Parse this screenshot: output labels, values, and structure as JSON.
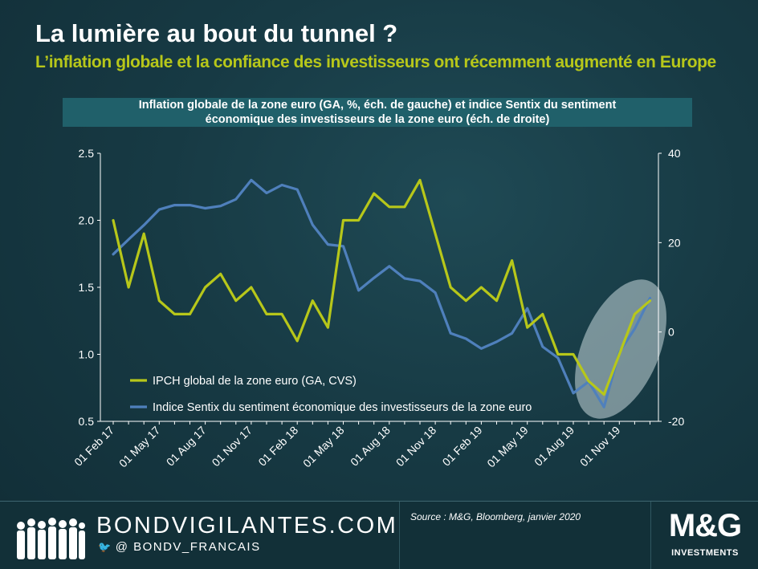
{
  "header": {
    "title": "La lumière au bout du tunnel ?",
    "subtitle": "L’inflation globale et la confiance des investisseurs ont récemment augmenté en Europe"
  },
  "chart_data": {
    "type": "line",
    "title_lines": [
      "Inflation  globale  de  la  zone euro  (GA, %, éch.  de gauche)  et indice  Sentix  du  sentiment",
      "économique  des  investisseurs  de  la  zone euro  (éch.  de droite)"
    ],
    "x": [
      "Feb 17",
      "Mar 17",
      "Apr 17",
      "May 17",
      "Jun 17",
      "Jul 17",
      "Aug 17",
      "Sep 17",
      "Oct 17",
      "Nov 17",
      "Dec 17",
      "Jan 18",
      "Feb 18",
      "Mar 18",
      "Apr 18",
      "May 18",
      "Jun 18",
      "Jul 18",
      "Aug 18",
      "Sep 18",
      "Oct 18",
      "Nov 18",
      "Dec 18",
      "Jan 19",
      "Feb 19",
      "Mar 19",
      "Apr 19",
      "May 19",
      "Jun 19",
      "Jul 19",
      "Aug 19",
      "Sep 19",
      "Oct 19",
      "Nov 19",
      "Dec 19",
      "Jan 20"
    ],
    "x_tick_labels": [
      "01 Feb 17",
      "01 May 17",
      "01 Aug 17",
      "01 Nov 17",
      "01 Feb 18",
      "01 May 18",
      "01 Aug 18",
      "01 Nov 18",
      "01 Feb 19",
      "01 May 19",
      "01 Aug 19",
      "01 Nov 19"
    ],
    "y_left": {
      "ticks": [
        "0.5",
        "1.0",
        "1.5",
        "2.0",
        "2.5"
      ],
      "ylim": [
        0.5,
        2.5
      ]
    },
    "y_right": {
      "ticks": [
        "-20",
        "0",
        "20",
        "40"
      ],
      "ylim": [
        -20,
        40
      ]
    },
    "series": [
      {
        "name": "IPCH global de la zone euro (GA, CVS)",
        "axis": "left",
        "color": "#b7c71a",
        "values": [
          2.0,
          1.5,
          1.9,
          1.4,
          1.3,
          1.3,
          1.5,
          1.6,
          1.4,
          1.5,
          1.3,
          1.3,
          1.1,
          1.4,
          1.2,
          2.0,
          2.0,
          2.2,
          2.1,
          2.1,
          2.3,
          1.9,
          1.5,
          1.4,
          1.5,
          1.4,
          1.7,
          1.2,
          1.3,
          1.0,
          1.0,
          0.8,
          0.7,
          1.0,
          1.3,
          1.4
        ]
      },
      {
        "name": "Indice Sentix du sentiment économique des investisseurs de la zone euro",
        "axis": "right",
        "color": "#4f80bc",
        "values": [
          17.4,
          20.7,
          23.9,
          27.4,
          28.4,
          28.4,
          27.7,
          28.2,
          29.7,
          34.0,
          31.1,
          32.9,
          31.9,
          24.0,
          19.6,
          19.2,
          9.3,
          12.1,
          14.7,
          12.0,
          11.4,
          8.8,
          -0.3,
          -1.5,
          -3.7,
          -2.2,
          -0.3,
          5.3,
          -3.3,
          -5.8,
          -13.7,
          -11.1,
          -16.8,
          -4.5,
          0.7,
          7.6
        ]
      }
    ],
    "highlight": "ellipse around the final months (Aug 19 – Jan 20)",
    "grid": false,
    "legend_position": "bottom-left inside plot"
  },
  "footer": {
    "brand": "BONDVIGILANTES.COM",
    "twitter": "@ BONDV_FRANCAIS",
    "source": "Source : M&G, Bloomberg, janvier 2020",
    "logo_text": "M&G",
    "logo_sub": "INVESTMENTS",
    "icons": [
      "people-silhouettes-icon",
      "twitter-bird-icon"
    ]
  }
}
